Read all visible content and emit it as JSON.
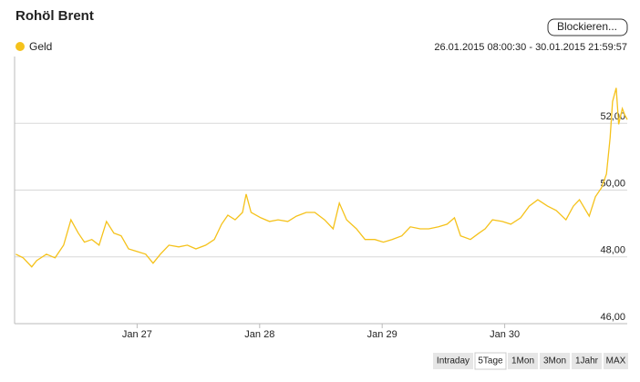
{
  "chart_data": {
    "type": "line",
    "title": "Rohöl Brent",
    "period": "26.01.2015 08:00:30 - 30.01.2015 21:59:57",
    "x": [
      26.01,
      26.07,
      26.14,
      26.18,
      26.26,
      26.33,
      26.4,
      26.46,
      26.52,
      26.57,
      26.63,
      26.69,
      26.75,
      26.81,
      26.87,
      26.93,
      27.0,
      27.07,
      27.13,
      27.19,
      27.26,
      27.34,
      27.41,
      27.48,
      27.56,
      27.63,
      27.69,
      27.74,
      27.8,
      27.86,
      27.89,
      27.93,
      28.01,
      28.08,
      28.15,
      28.23,
      28.3,
      28.38,
      28.45,
      28.53,
      28.6,
      28.65,
      28.71,
      28.79,
      28.86,
      28.94,
      29.01,
      29.08,
      29.16,
      29.23,
      29.31,
      29.38,
      29.46,
      29.53,
      29.59,
      29.64,
      29.72,
      29.79,
      29.84,
      29.9,
      29.98,
      30.05,
      30.13,
      30.2,
      30.27,
      30.35,
      30.42,
      30.5,
      30.56,
      30.61,
      30.69,
      30.74,
      30.79,
      30.83,
      30.86,
      30.88,
      30.91,
      30.93,
      30.96,
      30.98,
      31.0
    ],
    "series": [
      {
        "name": "Geld",
        "color": "#f5c21b",
        "values": [
          48.08,
          47.97,
          47.7,
          47.89,
          48.08,
          47.97,
          48.35,
          49.11,
          48.71,
          48.44,
          48.52,
          48.35,
          49.06,
          48.71,
          48.63,
          48.24,
          48.16,
          48.08,
          47.81,
          48.08,
          48.35,
          48.3,
          48.35,
          48.24,
          48.35,
          48.52,
          48.98,
          49.25,
          49.11,
          49.33,
          49.88,
          49.33,
          49.17,
          49.06,
          49.11,
          49.06,
          49.22,
          49.33,
          49.33,
          49.11,
          48.84,
          49.61,
          49.11,
          48.84,
          48.52,
          48.52,
          48.44,
          48.52,
          48.63,
          48.9,
          48.84,
          48.84,
          48.9,
          48.98,
          49.17,
          48.63,
          48.52,
          48.71,
          48.84,
          49.11,
          49.06,
          48.98,
          49.17,
          49.52,
          49.71,
          49.52,
          49.39,
          49.11,
          49.52,
          49.71,
          49.22,
          49.8,
          50.07,
          50.48,
          51.56,
          52.65,
          53.06,
          51.97,
          52.44,
          52.25,
          52.11
        ]
      }
    ],
    "xlim": [
      26,
      31
    ],
    "xticks": [
      {
        "value": 27,
        "label": "Jan 27"
      },
      {
        "value": 28,
        "label": "Jan 28"
      },
      {
        "value": 29,
        "label": "Jan 29"
      },
      {
        "value": 30,
        "label": "Jan 30"
      }
    ],
    "ylim": [
      46,
      54
    ],
    "yticks": [
      {
        "value": 46,
        "label": "46,00"
      },
      {
        "value": 48,
        "label": "48,00"
      },
      {
        "value": 50,
        "label": "50,00"
      },
      {
        "value": 52,
        "label": "52,00"
      }
    ],
    "grid": true
  },
  "controls": {
    "block_button": "Blockieren...",
    "range_buttons": [
      "Intraday",
      "5Tage",
      "1Mon",
      "3Mon",
      "1Jahr",
      "MAX"
    ],
    "selected": 1
  }
}
